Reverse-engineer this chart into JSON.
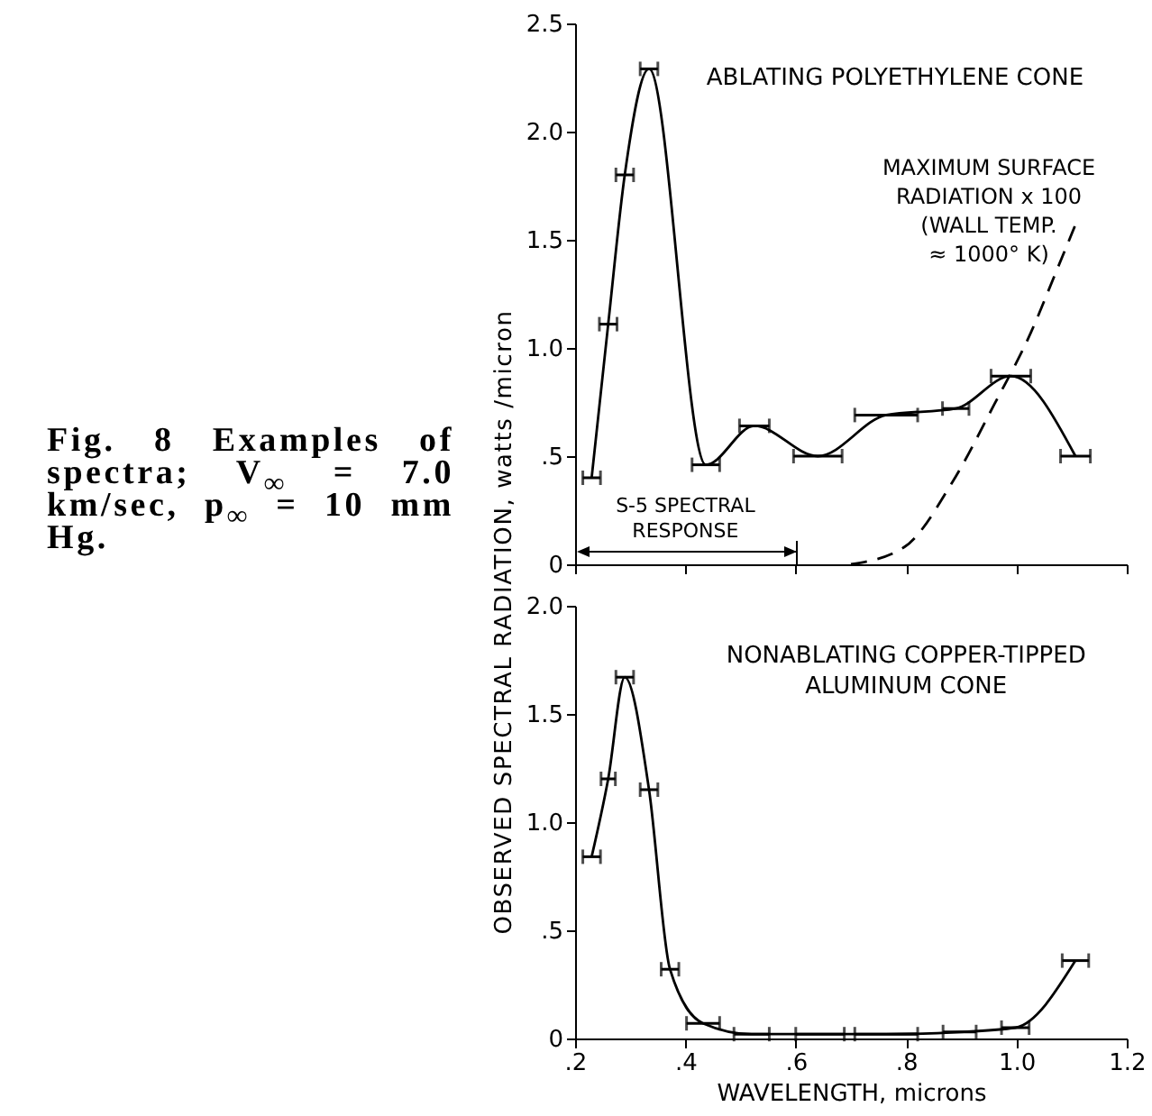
{
  "chart_data": [
    {
      "type": "line",
      "title": "ABLATING POLYETHYLENE CONE",
      "ylabel": "OBSERVED SPECTRAL RADIATION, watts /micron",
      "annotations": [
        "Fig. 8  Examples of spectra; V$_{∞}$ = 7.0 km/sec, p$_{∞}$ = 10 mm Hg.",
        "S-5 SPECTRAL\nRESPONSE"
      ],
      "series": [
        {
          "color": "#000000",
          "x": [
            0.23,
            0.26,
            0.29,
            0.334,
            0.437,
            0.525,
            0.64,
            0.764,
            0.89,
            0.99,
            1.107
          ],
          "values": [
            0.4,
            1.11,
            1.8,
            2.29,
            0.46,
            0.64,
            0.5,
            0.69,
            0.72,
            0.87,
            0.5
          ],
          "xerrors": [
            0.016,
            0.016,
            0.016,
            0.016,
            0.025,
            0.027,
            0.044,
            0.057,
            0.024,
            0.036,
            0.027
          ]
        },
        {
          "name": "MAXIMUM SURFACE\nRADIATION x 100\n(WALL TEMP.\n≈ 1000° K)",
          "color": "#000000",
          "line_style": "dashed",
          "x": [
            0.7,
            0.797,
            0.884,
            0.96,
            1.026,
            1.07,
            1.107
          ],
          "values": [
            0,
            0.08,
            0.38,
            0.74,
            1.07,
            1.34,
            1.57
          ]
        }
      ],
      "xlim": [
        0.2,
        1.2
      ],
      "xticks": [
        0.2,
        0.4,
        0.6,
        0.8,
        1.0,
        1.2
      ],
      "ylim": [
        0,
        2.5
      ],
      "yticks": [
        0,
        {
          "value": 0.5,
          "label": ".5"
        },
        {
          "value": 1,
          "label": "1.0"
        },
        1.5,
        {
          "value": 2,
          "label": "2.0"
        },
        2.5
      ],
      "tick_labels": "y"
    },
    {
      "type": "line",
      "title": "NONABLATING COPPER-TIPPED\nALUMINUM CONE",
      "xlabel": "WAVELENGTH, microns",
      "series": [
        {
          "color": "#000000",
          "x": [
            0.23,
            0.26,
            0.29,
            0.334,
            0.372,
            0.432,
            0.52,
            0.644,
            0.764,
            0.897,
            0.998,
            1.107
          ],
          "values": [
            0.84,
            1.2,
            1.67,
            1.15,
            0.32,
            0.07,
            0.02,
            0.02,
            0.02,
            0.03,
            0.05,
            0.36
          ],
          "xerrors": [
            0.016,
            0.013,
            0.016,
            0.016,
            0.016,
            0.03,
            0.032,
            0.044,
            0.057,
            0.03,
            0.025,
            0.024
          ]
        }
      ],
      "xlim": [
        0.2,
        1.2
      ],
      "xticks": [
        {
          "value": 0.2,
          "label": ".2"
        },
        {
          "value": 0.4,
          "label": ".4"
        },
        {
          "value": 0.6,
          "label": ".6"
        },
        {
          "value": 0.8,
          "label": ".8"
        },
        {
          "value": 1,
          "label": "1.0"
        },
        {
          "value": 1.2,
          "label": "1.2"
        }
      ],
      "ylim": [
        0,
        2
      ],
      "yticks": [
        0,
        {
          "value": 0.5,
          "label": ".5"
        },
        {
          "value": 1,
          "label": "1.0"
        },
        1.5,
        {
          "value": 2,
          "label": "2.0"
        }
      ]
    }
  ]
}
